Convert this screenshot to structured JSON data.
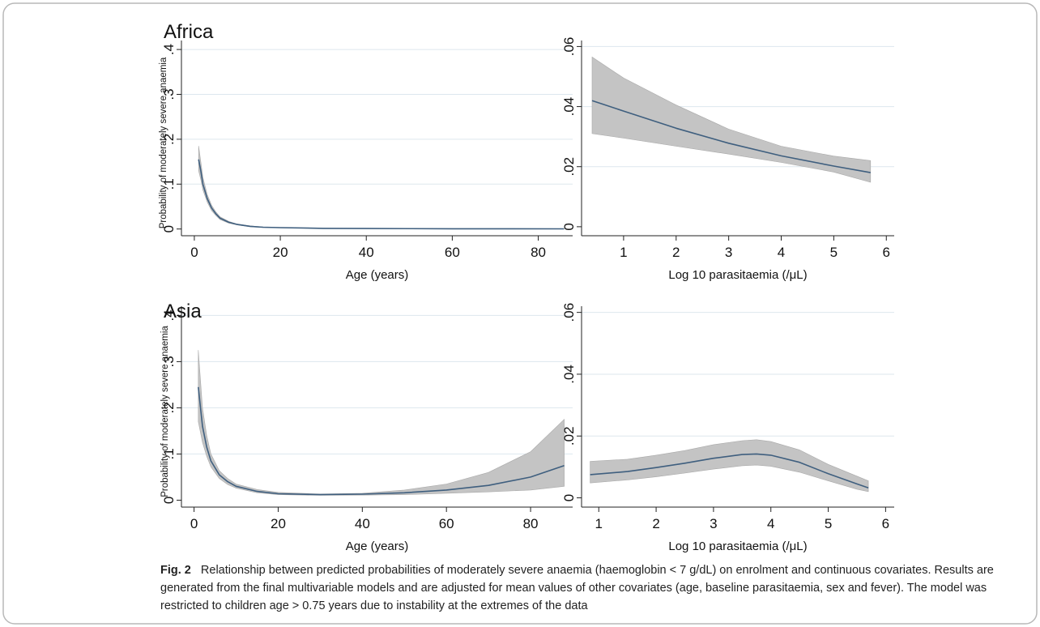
{
  "figure": {
    "caption_label": "Fig. 2",
    "caption_text": "Relationship between predicted probabilities of moderately severe anaemia (haemoglobin < 7 g/dL) on enrolment and continuous covariates. Results are generated from the final multivariable models and are adjusted for mean values of other covariates (age, baseline parasitaemia, sex and fever). The model was restricted to children age > 0.75 years due to instability at the extremes of the data",
    "colors": {
      "line": "#3f5f7f",
      "band": "#c4c4c4",
      "grid": "#dde7ee",
      "axis": "#222222"
    }
  },
  "chart_data": [
    {
      "type": "line",
      "region": "Africa",
      "title": "Africa",
      "xlabel": "Age (years)",
      "ylabel": "Probability of moderately severe anaemia",
      "xlim": [
        -3,
        88
      ],
      "ylim": [
        -0.015,
        0.42
      ],
      "xticks": [
        0,
        20,
        40,
        60,
        80
      ],
      "xtick_labels": [
        "0",
        "20",
        "40",
        "60",
        "80"
      ],
      "yticks": [
        0,
        0.1,
        0.2,
        0.3,
        0.4
      ],
      "ytick_labels": [
        "0",
        ".1",
        ".2",
        ".3",
        ".4"
      ],
      "series": [
        {
          "x": [
            1,
            1.5,
            2,
            3,
            4,
            5,
            6,
            8,
            10,
            13,
            16,
            20,
            30,
            40,
            60,
            86
          ],
          "y": [
            0.155,
            0.13,
            0.1,
            0.068,
            0.047,
            0.034,
            0.024,
            0.015,
            0.01,
            0.006,
            0.004,
            0.003,
            0.0015,
            0.001,
            0.0006,
            0.0004
          ],
          "lo": [
            0.13,
            0.11,
            0.087,
            0.06,
            0.041,
            0.03,
            0.021,
            0.013,
            0.009,
            0.005,
            0.0035,
            0.0025,
            0.0012,
            0.0008,
            0.0004,
            0.0002
          ],
          "hi": [
            0.185,
            0.15,
            0.115,
            0.077,
            0.053,
            0.038,
            0.027,
            0.017,
            0.011,
            0.007,
            0.0045,
            0.0035,
            0.0018,
            0.0012,
            0.0008,
            0.0006
          ]
        }
      ]
    },
    {
      "type": "line",
      "region": "Africa",
      "title": "",
      "xlabel": "Log 10 parasitaemia (/μL)",
      "ylabel": "",
      "xlim": [
        0.2,
        6.15
      ],
      "ylim": [
        -0.003,
        0.062
      ],
      "xticks": [
        1,
        2,
        3,
        4,
        5,
        6
      ],
      "xtick_labels": [
        "1",
        "2",
        "3",
        "4",
        "5",
        "6"
      ],
      "yticks": [
        0,
        0.02,
        0.04,
        0.06
      ],
      "ytick_labels": [
        "0",
        ".02",
        ".04",
        ".06"
      ],
      "series": [
        {
          "x": [
            0.4,
            1,
            2,
            3,
            4,
            5,
            5.7
          ],
          "y": [
            0.042,
            0.0385,
            0.0328,
            0.0278,
            0.0236,
            0.0202,
            0.018
          ],
          "lo": [
            0.031,
            0.0295,
            0.0268,
            0.0242,
            0.0214,
            0.0182,
            0.0148
          ],
          "hi": [
            0.0565,
            0.0495,
            0.0405,
            0.0325,
            0.0268,
            0.0235,
            0.022
          ]
        }
      ]
    },
    {
      "type": "line",
      "region": "Asia",
      "title": "Asia",
      "xlabel": "Age (years)",
      "ylabel": "Probability of moderately severe anaemia",
      "xlim": [
        -3,
        90
      ],
      "ylim": [
        -0.015,
        0.42
      ],
      "xticks": [
        0,
        20,
        40,
        60,
        80
      ],
      "xtick_labels": [
        "0",
        "20",
        "40",
        "60",
        "80"
      ],
      "yticks": [
        0,
        0.1,
        0.2,
        0.3,
        0.4
      ],
      "ytick_labels": [
        "0",
        ".1",
        ".2",
        ".3",
        ".4"
      ],
      "series": [
        {
          "x": [
            1,
            2,
            3,
            4,
            6,
            8,
            10,
            15,
            20,
            30,
            40,
            50,
            60,
            70,
            80,
            88
          ],
          "y": [
            0.245,
            0.16,
            0.115,
            0.085,
            0.055,
            0.04,
            0.03,
            0.019,
            0.014,
            0.012,
            0.013,
            0.016,
            0.022,
            0.032,
            0.05,
            0.075
          ],
          "lo": [
            0.17,
            0.125,
            0.095,
            0.072,
            0.047,
            0.034,
            0.026,
            0.016,
            0.012,
            0.0105,
            0.011,
            0.012,
            0.015,
            0.018,
            0.022,
            0.03
          ],
          "hi": [
            0.325,
            0.2,
            0.14,
            0.1,
            0.064,
            0.047,
            0.035,
            0.023,
            0.017,
            0.0135,
            0.015,
            0.022,
            0.035,
            0.06,
            0.105,
            0.175
          ]
        }
      ]
    },
    {
      "type": "line",
      "region": "Asia",
      "title": "",
      "xlabel": "Log 10 parasitaemia (/μL)",
      "ylabel": "",
      "xlim": [
        0.7,
        6.15
      ],
      "ylim": [
        -0.003,
        0.062
      ],
      "xticks": [
        1,
        2,
        3,
        4,
        5,
        6
      ],
      "xtick_labels": [
        "1",
        "2",
        "3",
        "4",
        "5",
        "6"
      ],
      "yticks": [
        0,
        0.02,
        0.04,
        0.06
      ],
      "ytick_labels": [
        "0",
        ".02",
        ".04",
        ".06"
      ],
      "series": [
        {
          "x": [
            0.85,
            1.5,
            2,
            2.5,
            3,
            3.5,
            3.75,
            4,
            4.5,
            5,
            5.5,
            5.7
          ],
          "y": [
            0.0075,
            0.0085,
            0.0098,
            0.0112,
            0.0128,
            0.014,
            0.0142,
            0.0138,
            0.0115,
            0.0078,
            0.0045,
            0.0032
          ],
          "lo": [
            0.0048,
            0.0058,
            0.0068,
            0.008,
            0.0093,
            0.0104,
            0.0106,
            0.0102,
            0.0083,
            0.0055,
            0.0028,
            0.002
          ],
          "hi": [
            0.0118,
            0.0125,
            0.0138,
            0.0153,
            0.0172,
            0.0185,
            0.0188,
            0.0182,
            0.0155,
            0.0108,
            0.007,
            0.0055
          ]
        }
      ]
    }
  ]
}
